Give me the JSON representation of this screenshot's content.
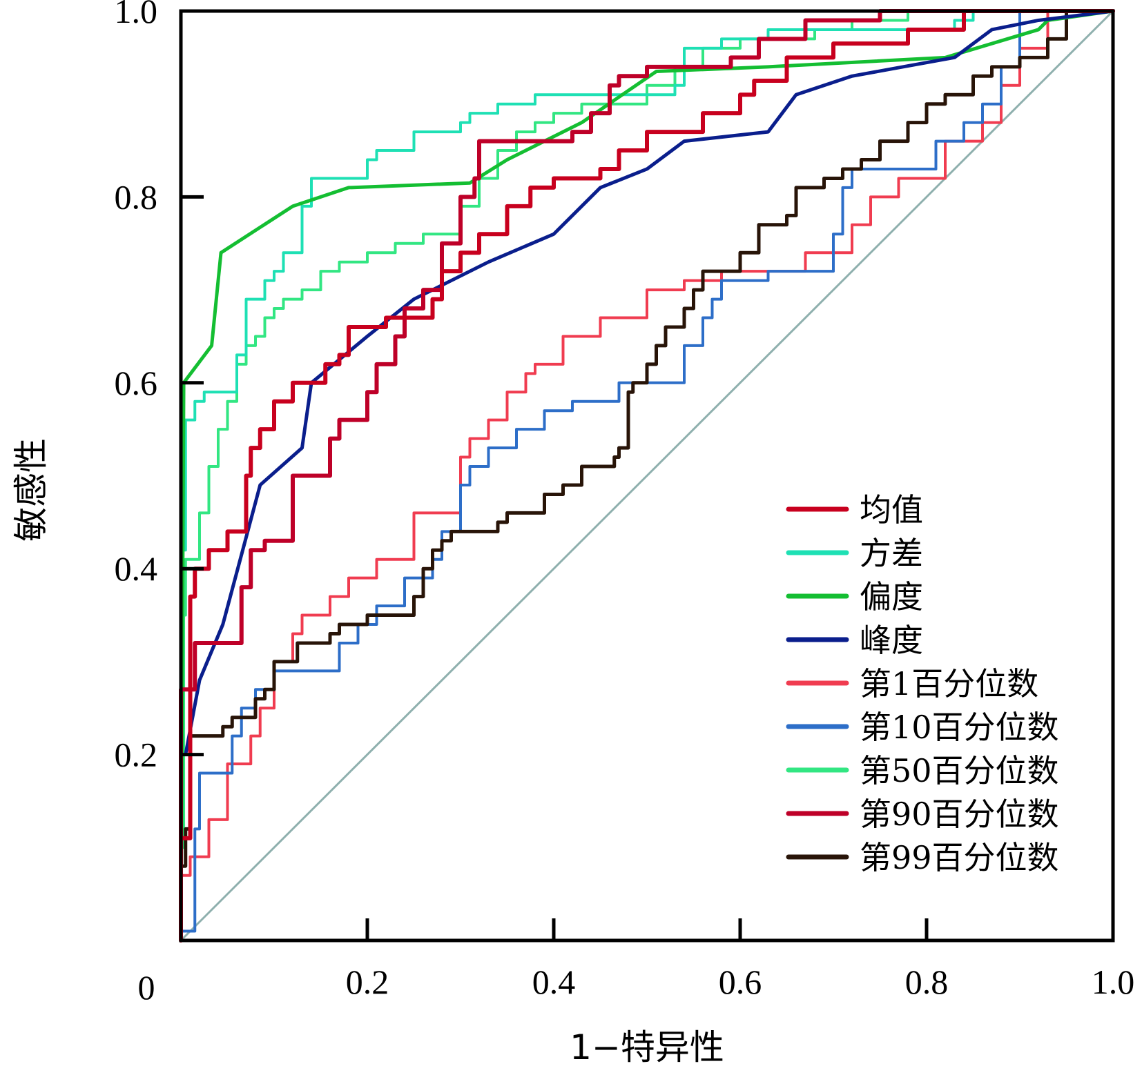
{
  "chart_data": {
    "type": "line",
    "title": "",
    "xlabel": "1−特异性",
    "ylabel": "敏感性",
    "xlim": [
      0,
      1
    ],
    "ylim": [
      0,
      1
    ],
    "x_ticks": [
      {
        "value": 0,
        "label": "0"
      },
      {
        "value": 0.2,
        "label": "0.2"
      },
      {
        "value": 0.4,
        "label": "0.4"
      },
      {
        "value": 0.6,
        "label": "0.6"
      },
      {
        "value": 0.8,
        "label": "0.8"
      },
      {
        "value": 1.0,
        "label": "1.0"
      }
    ],
    "y_ticks": [
      {
        "value": 0.2,
        "label": "0.2"
      },
      {
        "value": 0.4,
        "label": "0.4"
      },
      {
        "value": 0.6,
        "label": "0.6"
      },
      {
        "value": 0.8,
        "label": "0.8"
      },
      {
        "value": 1.0,
        "label": "1.0"
      }
    ],
    "grid": false,
    "legend_position": "bottom-right",
    "reference_line": {
      "name": "diagonal",
      "color": "#8fb0ae",
      "points": [
        [
          0,
          0
        ],
        [
          1,
          1
        ]
      ]
    },
    "series": [
      {
        "name": "均值",
        "color": "#c8001e",
        "style": "step",
        "width": 6,
        "points": [
          [
            0,
            0
          ],
          [
            0.01,
            0.11
          ],
          [
            0.015,
            0.37
          ],
          [
            0.03,
            0.4
          ],
          [
            0.05,
            0.42
          ],
          [
            0.07,
            0.44
          ],
          [
            0.075,
            0.5
          ],
          [
            0.085,
            0.53
          ],
          [
            0.1,
            0.55
          ],
          [
            0.12,
            0.58
          ],
          [
            0.155,
            0.6
          ],
          [
            0.17,
            0.62
          ],
          [
            0.18,
            0.63
          ],
          [
            0.22,
            0.66
          ],
          [
            0.27,
            0.67
          ],
          [
            0.28,
            0.69
          ],
          [
            0.3,
            0.72
          ],
          [
            0.32,
            0.74
          ],
          [
            0.35,
            0.76
          ],
          [
            0.375,
            0.79
          ],
          [
            0.4,
            0.81
          ],
          [
            0.45,
            0.82
          ],
          [
            0.47,
            0.83
          ],
          [
            0.5,
            0.85
          ],
          [
            0.56,
            0.87
          ],
          [
            0.6,
            0.89
          ],
          [
            0.615,
            0.91
          ],
          [
            0.65,
            0.925
          ],
          [
            0.7,
            0.95
          ],
          [
            0.78,
            0.965
          ],
          [
            0.84,
            0.98
          ],
          [
            0.91,
            1.0
          ],
          [
            1,
            1
          ]
        ]
      },
      {
        "name": "方差",
        "color": "#1ee0b4",
        "style": "step",
        "width": 4,
        "points": [
          [
            0,
            0
          ],
          [
            0.005,
            0.42
          ],
          [
            0.015,
            0.56
          ],
          [
            0.025,
            0.58
          ],
          [
            0.06,
            0.59
          ],
          [
            0.07,
            0.63
          ],
          [
            0.09,
            0.69
          ],
          [
            0.1,
            0.71
          ],
          [
            0.11,
            0.72
          ],
          [
            0.13,
            0.74
          ],
          [
            0.14,
            0.79
          ],
          [
            0.2,
            0.82
          ],
          [
            0.21,
            0.84
          ],
          [
            0.25,
            0.85
          ],
          [
            0.3,
            0.87
          ],
          [
            0.31,
            0.88
          ],
          [
            0.34,
            0.89
          ],
          [
            0.38,
            0.9
          ],
          [
            0.53,
            0.91
          ],
          [
            0.54,
            0.92
          ],
          [
            0.58,
            0.96
          ],
          [
            0.63,
            0.97
          ],
          [
            0.83,
            0.98
          ],
          [
            0.85,
            0.99
          ],
          [
            0.95,
            1.0
          ],
          [
            1,
            1
          ]
        ]
      },
      {
        "name": "偏度",
        "color": "#14be32",
        "style": "line",
        "width": 5,
        "points": [
          [
            0,
            0
          ],
          [
            0.003,
            0.6
          ],
          [
            0.033,
            0.64
          ],
          [
            0.043,
            0.74
          ],
          [
            0.12,
            0.79
          ],
          [
            0.18,
            0.81
          ],
          [
            0.31,
            0.815
          ],
          [
            0.35,
            0.84
          ],
          [
            0.43,
            0.88
          ],
          [
            0.51,
            0.935
          ],
          [
            0.63,
            0.94
          ],
          [
            0.82,
            0.95
          ],
          [
            0.92,
            0.98
          ],
          [
            0.93,
            0.99
          ],
          [
            1,
            1
          ]
        ]
      },
      {
        "name": "峰度",
        "color": "#0a1e8c",
        "style": "line",
        "width": 5,
        "points": [
          [
            0.005,
            0.2
          ],
          [
            0.02,
            0.28
          ],
          [
            0.045,
            0.34
          ],
          [
            0.085,
            0.49
          ],
          [
            0.13,
            0.53
          ],
          [
            0.14,
            0.6
          ],
          [
            0.2,
            0.65
          ],
          [
            0.25,
            0.69
          ],
          [
            0.33,
            0.73
          ],
          [
            0.4,
            0.76
          ],
          [
            0.45,
            0.81
          ],
          [
            0.5,
            0.83
          ],
          [
            0.54,
            0.86
          ],
          [
            0.63,
            0.87
          ],
          [
            0.66,
            0.91
          ],
          [
            0.72,
            0.93
          ],
          [
            0.83,
            0.95
          ],
          [
            0.87,
            0.98
          ],
          [
            0.92,
            0.99
          ],
          [
            1,
            1
          ]
        ]
      },
      {
        "name": "第1百分位数",
        "color": "#f03c50",
        "style": "step",
        "width": 4,
        "points": [
          [
            0,
            0
          ],
          [
            0.01,
            0.07
          ],
          [
            0.03,
            0.09
          ],
          [
            0.05,
            0.13
          ],
          [
            0.075,
            0.19
          ],
          [
            0.085,
            0.22
          ],
          [
            0.1,
            0.25
          ],
          [
            0.12,
            0.3
          ],
          [
            0.13,
            0.33
          ],
          [
            0.16,
            0.35
          ],
          [
            0.18,
            0.37
          ],
          [
            0.21,
            0.39
          ],
          [
            0.25,
            0.41
          ],
          [
            0.3,
            0.46
          ],
          [
            0.31,
            0.52
          ],
          [
            0.33,
            0.54
          ],
          [
            0.35,
            0.56
          ],
          [
            0.37,
            0.59
          ],
          [
            0.38,
            0.61
          ],
          [
            0.41,
            0.62
          ],
          [
            0.45,
            0.65
          ],
          [
            0.5,
            0.67
          ],
          [
            0.54,
            0.7
          ],
          [
            0.58,
            0.71
          ],
          [
            0.67,
            0.72
          ],
          [
            0.72,
            0.74
          ],
          [
            0.74,
            0.77
          ],
          [
            0.77,
            0.8
          ],
          [
            0.82,
            0.82
          ],
          [
            0.86,
            0.86
          ],
          [
            0.88,
            0.88
          ],
          [
            0.9,
            0.92
          ],
          [
            0.93,
            0.96
          ],
          [
            0.97,
            1.0
          ],
          [
            1,
            1
          ]
        ]
      },
      {
        "name": "第10百分位数",
        "color": "#2d6ec8",
        "style": "step",
        "width": 4,
        "points": [
          [
            0,
            0
          ],
          [
            0.015,
            0.01
          ],
          [
            0.02,
            0.12
          ],
          [
            0.055,
            0.18
          ],
          [
            0.065,
            0.22
          ],
          [
            0.08,
            0.25
          ],
          [
            0.1,
            0.27
          ],
          [
            0.17,
            0.29
          ],
          [
            0.19,
            0.32
          ],
          [
            0.21,
            0.34
          ],
          [
            0.24,
            0.36
          ],
          [
            0.27,
            0.39
          ],
          [
            0.28,
            0.41
          ],
          [
            0.3,
            0.44
          ],
          [
            0.31,
            0.49
          ],
          [
            0.33,
            0.51
          ],
          [
            0.36,
            0.53
          ],
          [
            0.39,
            0.55
          ],
          [
            0.42,
            0.57
          ],
          [
            0.47,
            0.58
          ],
          [
            0.54,
            0.6
          ],
          [
            0.56,
            0.64
          ],
          [
            0.57,
            0.67
          ],
          [
            0.58,
            0.69
          ],
          [
            0.63,
            0.71
          ],
          [
            0.7,
            0.72
          ],
          [
            0.71,
            0.76
          ],
          [
            0.72,
            0.81
          ],
          [
            0.81,
            0.83
          ],
          [
            0.84,
            0.86
          ],
          [
            0.86,
            0.88
          ],
          [
            0.88,
            0.9
          ],
          [
            0.9,
            0.94
          ],
          [
            0.94,
            1.0
          ],
          [
            1,
            1
          ]
        ]
      },
      {
        "name": "第50百分位数",
        "color": "#32e682",
        "style": "step",
        "width": 4,
        "points": [
          [
            0,
            0
          ],
          [
            0.003,
            0.1
          ],
          [
            0.005,
            0.35
          ],
          [
            0.02,
            0.41
          ],
          [
            0.03,
            0.46
          ],
          [
            0.04,
            0.51
          ],
          [
            0.05,
            0.55
          ],
          [
            0.06,
            0.58
          ],
          [
            0.07,
            0.62
          ],
          [
            0.08,
            0.64
          ],
          [
            0.09,
            0.65
          ],
          [
            0.1,
            0.67
          ],
          [
            0.11,
            0.68
          ],
          [
            0.13,
            0.69
          ],
          [
            0.15,
            0.7
          ],
          [
            0.17,
            0.72
          ],
          [
            0.2,
            0.73
          ],
          [
            0.23,
            0.74
          ],
          [
            0.26,
            0.75
          ],
          [
            0.3,
            0.76
          ],
          [
            0.32,
            0.79
          ],
          [
            0.34,
            0.82
          ],
          [
            0.36,
            0.85
          ],
          [
            0.38,
            0.87
          ],
          [
            0.4,
            0.88
          ],
          [
            0.43,
            0.89
          ],
          [
            0.5,
            0.9
          ],
          [
            0.53,
            0.92
          ],
          [
            0.56,
            0.94
          ],
          [
            0.6,
            0.96
          ],
          [
            0.68,
            0.97
          ],
          [
            0.72,
            0.98
          ],
          [
            0.78,
            0.99
          ],
          [
            0.8,
            1.0
          ],
          [
            1,
            1
          ]
        ]
      },
      {
        "name": "第90百分位数",
        "color": "#be0028",
        "style": "step",
        "width": 6,
        "points": [
          [
            0,
            0
          ],
          [
            0.015,
            0.27
          ],
          [
            0.065,
            0.32
          ],
          [
            0.075,
            0.38
          ],
          [
            0.09,
            0.42
          ],
          [
            0.12,
            0.43
          ],
          [
            0.16,
            0.5
          ],
          [
            0.17,
            0.54
          ],
          [
            0.2,
            0.56
          ],
          [
            0.21,
            0.59
          ],
          [
            0.23,
            0.62
          ],
          [
            0.24,
            0.65
          ],
          [
            0.26,
            0.68
          ],
          [
            0.28,
            0.7
          ],
          [
            0.3,
            0.75
          ],
          [
            0.315,
            0.8
          ],
          [
            0.32,
            0.82
          ],
          [
            0.42,
            0.86
          ],
          [
            0.44,
            0.87
          ],
          [
            0.46,
            0.89
          ],
          [
            0.47,
            0.92
          ],
          [
            0.5,
            0.93
          ],
          [
            0.59,
            0.94
          ],
          [
            0.62,
            0.95
          ],
          [
            0.67,
            0.97
          ],
          [
            0.75,
            0.99
          ],
          [
            0.85,
            1.0
          ],
          [
            1,
            1
          ]
        ]
      },
      {
        "name": "第99百分位数",
        "color": "#281408",
        "style": "step",
        "width": 5,
        "points": [
          [
            0,
            0
          ],
          [
            0.005,
            0.08
          ],
          [
            0.01,
            0.12
          ],
          [
            0.045,
            0.22
          ],
          [
            0.055,
            0.23
          ],
          [
            0.08,
            0.24
          ],
          [
            0.09,
            0.26
          ],
          [
            0.1,
            0.27
          ],
          [
            0.125,
            0.3
          ],
          [
            0.16,
            0.32
          ],
          [
            0.17,
            0.33
          ],
          [
            0.2,
            0.34
          ],
          [
            0.25,
            0.35
          ],
          [
            0.26,
            0.37
          ],
          [
            0.27,
            0.4
          ],
          [
            0.28,
            0.42
          ],
          [
            0.29,
            0.43
          ],
          [
            0.34,
            0.44
          ],
          [
            0.35,
            0.45
          ],
          [
            0.39,
            0.46
          ],
          [
            0.41,
            0.48
          ],
          [
            0.43,
            0.49
          ],
          [
            0.465,
            0.51
          ],
          [
            0.47,
            0.52
          ],
          [
            0.48,
            0.53
          ],
          [
            0.485,
            0.59
          ],
          [
            0.5,
            0.6
          ],
          [
            0.51,
            0.62
          ],
          [
            0.52,
            0.64
          ],
          [
            0.54,
            0.66
          ],
          [
            0.55,
            0.68
          ],
          [
            0.56,
            0.7
          ],
          [
            0.6,
            0.72
          ],
          [
            0.62,
            0.74
          ],
          [
            0.65,
            0.77
          ],
          [
            0.66,
            0.78
          ],
          [
            0.69,
            0.81
          ],
          [
            0.71,
            0.82
          ],
          [
            0.73,
            0.83
          ],
          [
            0.75,
            0.84
          ],
          [
            0.78,
            0.86
          ],
          [
            0.8,
            0.88
          ],
          [
            0.82,
            0.9
          ],
          [
            0.85,
            0.91
          ],
          [
            0.87,
            0.93
          ],
          [
            0.9,
            0.94
          ],
          [
            0.93,
            0.95
          ],
          [
            0.95,
            0.97
          ],
          [
            0.99,
            1.0
          ],
          [
            1,
            1
          ]
        ]
      }
    ]
  }
}
